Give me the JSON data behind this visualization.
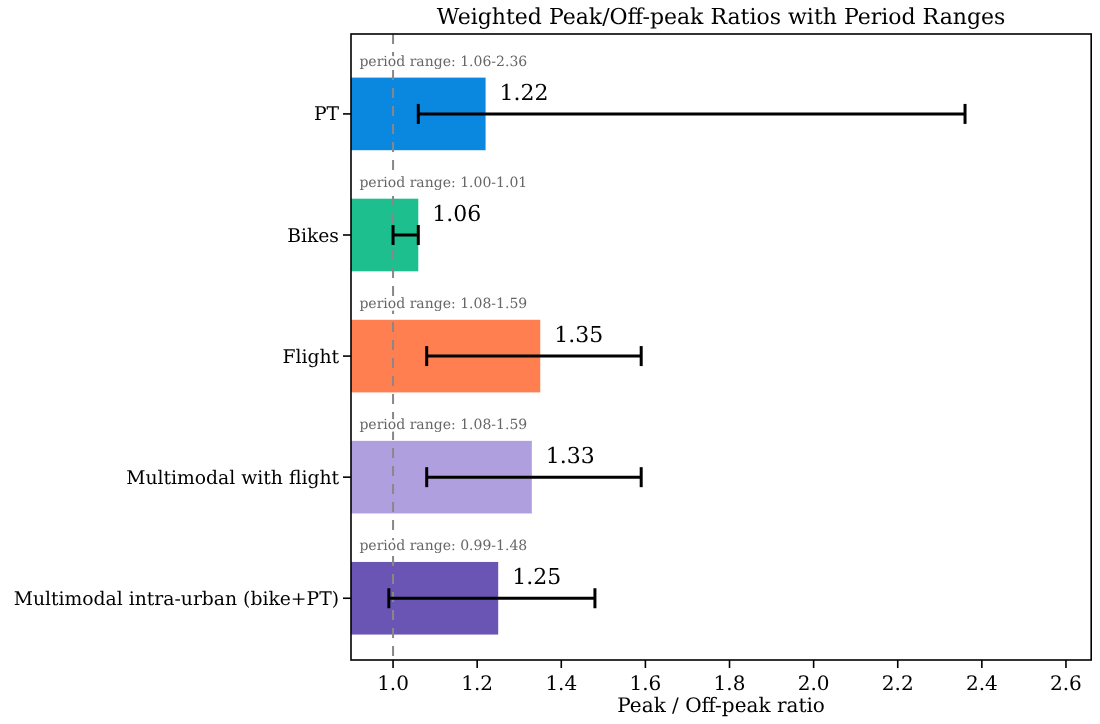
{
  "chart_data": {
    "type": "bar",
    "orientation": "horizontal",
    "title": "Weighted Peak/Off-peak Ratios with Period Ranges",
    "xlabel": "Peak / Off-peak ratio",
    "categories": [
      "PT",
      "Bikes",
      "Flight",
      "Multimodal with flight",
      "Multimodal intra-urban (bike+PT)"
    ],
    "values": [
      1.22,
      1.06,
      1.35,
      1.33,
      1.25
    ],
    "colors": [
      "#0a88e0",
      "#1dbf8e",
      "#ff7f50",
      "#b09fdf",
      "#6a55b5"
    ],
    "errors": [
      [
        1.06,
        2.36
      ],
      [
        1.0,
        1.06
      ],
      [
        1.08,
        1.59
      ],
      [
        1.08,
        1.59
      ],
      [
        0.99,
        1.48
      ]
    ],
    "data_labels": true,
    "xlim": [
      0.9,
      2.66
    ],
    "xticks": [
      {
        "value": 1,
        "label": "1.0"
      },
      1.2,
      1.4,
      1.6,
      1.8,
      {
        "value": 2,
        "label": "2.0"
      },
      2.2,
      2.4,
      2.6
    ],
    "ref_lines": [
      {
        "axis": "x",
        "value": 1.0,
        "color": "#888888",
        "line_style": "dashed"
      }
    ],
    "annotations": [
      "period range: 1.06-2.36",
      "period range: 1.00-1.01",
      "period range: 1.08-1.59",
      "period range: 1.08-1.59",
      "period range: 0.99-1.48"
    ]
  }
}
